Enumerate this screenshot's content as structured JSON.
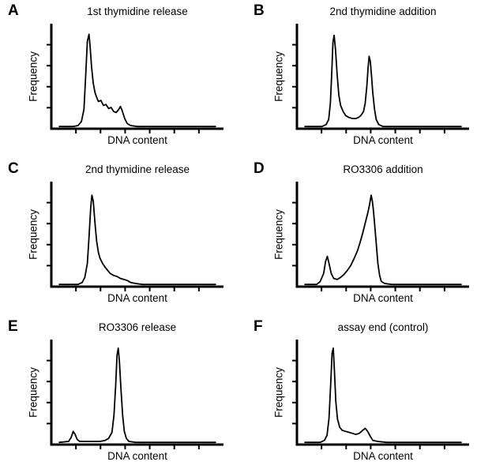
{
  "figure": {
    "kind": "flow-cytometry cell-cycle histogram figure",
    "grid": "2 columns x 3 rows",
    "background": "#ffffff",
    "line_color": "#000000"
  },
  "chart_data": [
    {
      "panel": "A",
      "type": "line",
      "title": "1st thymidine release",
      "xlabel": "DNA content",
      "ylabel": "Frequency",
      "features": "single tall narrow 2N (G1) peak with noisy right tail and small 4N bump",
      "layout": {
        "frame": "L-shaped axes",
        "x_ticks": 6,
        "y_ticks": 4,
        "tick_labels": false,
        "x_range": [
          0,
          1
        ],
        "y_range": [
          0,
          1
        ]
      },
      "points": [
        [
          0.04,
          0.01
        ],
        [
          0.12,
          0.01
        ],
        [
          0.15,
          0.02
        ],
        [
          0.17,
          0.06
        ],
        [
          0.185,
          0.18
        ],
        [
          0.195,
          0.5
        ],
        [
          0.205,
          0.86
        ],
        [
          0.215,
          0.93
        ],
        [
          0.222,
          0.8
        ],
        [
          0.23,
          0.6
        ],
        [
          0.24,
          0.44
        ],
        [
          0.25,
          0.35
        ],
        [
          0.26,
          0.3
        ],
        [
          0.27,
          0.26
        ],
        [
          0.285,
          0.27
        ],
        [
          0.3,
          0.22
        ],
        [
          0.315,
          0.23
        ],
        [
          0.33,
          0.19
        ],
        [
          0.345,
          0.2
        ],
        [
          0.36,
          0.16
        ],
        [
          0.375,
          0.15
        ],
        [
          0.39,
          0.18
        ],
        [
          0.4,
          0.21
        ],
        [
          0.41,
          0.17
        ],
        [
          0.425,
          0.09
        ],
        [
          0.44,
          0.04
        ],
        [
          0.46,
          0.02
        ],
        [
          0.5,
          0.01
        ],
        [
          0.96,
          0.01
        ]
      ]
    },
    {
      "panel": "B",
      "type": "line",
      "title": "2nd thymidine addition",
      "xlabel": "DNA content",
      "ylabel": "Frequency",
      "features": "two peaks: tall narrow 2N (G1) peak and slightly shorter 4N (G2/M) peak with shallow valley between",
      "layout": {
        "frame": "L-shaped axes",
        "x_ticks": 6,
        "y_ticks": 4,
        "tick_labels": false,
        "x_range": [
          0,
          1
        ],
        "y_range": [
          0,
          1
        ]
      },
      "points": [
        [
          0.04,
          0.01
        ],
        [
          0.14,
          0.01
        ],
        [
          0.165,
          0.03
        ],
        [
          0.18,
          0.08
        ],
        [
          0.19,
          0.25
        ],
        [
          0.198,
          0.55
        ],
        [
          0.205,
          0.85
        ],
        [
          0.212,
          0.92
        ],
        [
          0.22,
          0.78
        ],
        [
          0.23,
          0.52
        ],
        [
          0.24,
          0.32
        ],
        [
          0.25,
          0.22
        ],
        [
          0.265,
          0.16
        ],
        [
          0.28,
          0.12
        ],
        [
          0.3,
          0.1
        ],
        [
          0.32,
          0.09
        ],
        [
          0.34,
          0.09
        ],
        [
          0.355,
          0.1
        ],
        [
          0.37,
          0.12
        ],
        [
          0.385,
          0.16
        ],
        [
          0.395,
          0.24
        ],
        [
          0.405,
          0.42
        ],
        [
          0.412,
          0.6
        ],
        [
          0.418,
          0.71
        ],
        [
          0.425,
          0.66
        ],
        [
          0.432,
          0.52
        ],
        [
          0.44,
          0.34
        ],
        [
          0.45,
          0.18
        ],
        [
          0.46,
          0.08
        ],
        [
          0.475,
          0.03
        ],
        [
          0.5,
          0.01
        ],
        [
          0.96,
          0.01
        ]
      ]
    },
    {
      "panel": "C",
      "type": "line",
      "title": "2nd thymidine release",
      "xlabel": "DNA content",
      "ylabel": "Frequency",
      "features": "single dominant 2N (G1) peak with smooth decaying right tail",
      "layout": {
        "frame": "L-shaped axes",
        "x_ticks": 6,
        "y_ticks": 4,
        "tick_labels": false,
        "x_range": [
          0,
          1
        ],
        "y_range": [
          0,
          1
        ]
      },
      "points": [
        [
          0.04,
          0.01
        ],
        [
          0.15,
          0.01
        ],
        [
          0.175,
          0.03
        ],
        [
          0.19,
          0.08
        ],
        [
          0.205,
          0.22
        ],
        [
          0.215,
          0.48
        ],
        [
          0.225,
          0.78
        ],
        [
          0.232,
          0.9
        ],
        [
          0.24,
          0.84
        ],
        [
          0.25,
          0.62
        ],
        [
          0.26,
          0.44
        ],
        [
          0.27,
          0.33
        ],
        [
          0.28,
          0.27
        ],
        [
          0.295,
          0.22
        ],
        [
          0.31,
          0.18
        ],
        [
          0.325,
          0.15
        ],
        [
          0.34,
          0.12
        ],
        [
          0.36,
          0.1
        ],
        [
          0.38,
          0.09
        ],
        [
          0.4,
          0.07
        ],
        [
          0.42,
          0.06
        ],
        [
          0.44,
          0.05
        ],
        [
          0.46,
          0.03
        ],
        [
          0.49,
          0.02
        ],
        [
          0.53,
          0.01
        ],
        [
          0.96,
          0.01
        ]
      ]
    },
    {
      "panel": "D",
      "type": "line",
      "title": "RO3306 addition",
      "xlabel": "DNA content",
      "ylabel": "Frequency",
      "features": "small residual 2N peak plus broad rising shoulder into dominant sharp 4N (G2/M) peak",
      "layout": {
        "frame": "L-shaped axes",
        "x_ticks": 6,
        "y_ticks": 4,
        "tick_labels": false,
        "x_range": [
          0,
          1
        ],
        "y_range": [
          0,
          1
        ]
      },
      "points": [
        [
          0.04,
          0.01
        ],
        [
          0.11,
          0.01
        ],
        [
          0.13,
          0.04
        ],
        [
          0.15,
          0.12
        ],
        [
          0.162,
          0.24
        ],
        [
          0.172,
          0.29
        ],
        [
          0.182,
          0.22
        ],
        [
          0.195,
          0.12
        ],
        [
          0.21,
          0.07
        ],
        [
          0.23,
          0.06
        ],
        [
          0.25,
          0.08
        ],
        [
          0.27,
          0.11
        ],
        [
          0.29,
          0.15
        ],
        [
          0.31,
          0.2
        ],
        [
          0.33,
          0.27
        ],
        [
          0.35,
          0.35
        ],
        [
          0.365,
          0.43
        ],
        [
          0.38,
          0.52
        ],
        [
          0.395,
          0.62
        ],
        [
          0.41,
          0.72
        ],
        [
          0.42,
          0.8
        ],
        [
          0.43,
          0.9
        ],
        [
          0.437,
          0.84
        ],
        [
          0.443,
          0.76
        ],
        [
          0.45,
          0.62
        ],
        [
          0.46,
          0.42
        ],
        [
          0.47,
          0.22
        ],
        [
          0.48,
          0.1
        ],
        [
          0.49,
          0.04
        ],
        [
          0.51,
          0.02
        ],
        [
          0.55,
          0.01
        ],
        [
          0.96,
          0.01
        ]
      ]
    },
    {
      "panel": "E",
      "type": "line",
      "title": "RO3306 release",
      "xlabel": "DNA content",
      "ylabel": "Frequency",
      "features": "tiny 2N bump and dominant tall narrow peak at higher DNA content (mitotic/G2 population)",
      "layout": {
        "frame": "L-shaped axes",
        "x_ticks": 6,
        "y_ticks": 4,
        "tick_labels": false,
        "x_range": [
          0,
          1
        ],
        "y_range": [
          0,
          1
        ]
      },
      "points": [
        [
          0.04,
          0.01
        ],
        [
          0.095,
          0.02
        ],
        [
          0.11,
          0.06
        ],
        [
          0.122,
          0.12
        ],
        [
          0.133,
          0.09
        ],
        [
          0.145,
          0.04
        ],
        [
          0.16,
          0.02
        ],
        [
          0.2,
          0.02
        ],
        [
          0.24,
          0.02
        ],
        [
          0.28,
          0.02
        ],
        [
          0.31,
          0.03
        ],
        [
          0.33,
          0.05
        ],
        [
          0.35,
          0.11
        ],
        [
          0.362,
          0.28
        ],
        [
          0.372,
          0.58
        ],
        [
          0.38,
          0.88
        ],
        [
          0.387,
          0.95
        ],
        [
          0.394,
          0.82
        ],
        [
          0.403,
          0.55
        ],
        [
          0.413,
          0.28
        ],
        [
          0.423,
          0.12
        ],
        [
          0.435,
          0.05
        ],
        [
          0.45,
          0.02
        ],
        [
          0.49,
          0.01
        ],
        [
          0.96,
          0.01
        ]
      ]
    },
    {
      "panel": "F",
      "type": "line",
      "title": "assay end (control)",
      "xlabel": "DNA content",
      "ylabel": "Frequency",
      "features": "tall narrow 2N (G1) peak, low plateau tail and small 4N bump",
      "layout": {
        "frame": "L-shaped axes",
        "x_ticks": 6,
        "y_ticks": 4,
        "tick_labels": false,
        "x_range": [
          0,
          1
        ],
        "y_range": [
          0,
          1
        ]
      },
      "points": [
        [
          0.04,
          0.01
        ],
        [
          0.13,
          0.01
        ],
        [
          0.155,
          0.03
        ],
        [
          0.17,
          0.08
        ],
        [
          0.182,
          0.25
        ],
        [
          0.192,
          0.6
        ],
        [
          0.2,
          0.9
        ],
        [
          0.207,
          0.95
        ],
        [
          0.214,
          0.72
        ],
        [
          0.222,
          0.42
        ],
        [
          0.232,
          0.24
        ],
        [
          0.245,
          0.16
        ],
        [
          0.26,
          0.13
        ],
        [
          0.28,
          0.12
        ],
        [
          0.3,
          0.11
        ],
        [
          0.32,
          0.1
        ],
        [
          0.34,
          0.09
        ],
        [
          0.36,
          0.1
        ],
        [
          0.38,
          0.13
        ],
        [
          0.395,
          0.15
        ],
        [
          0.41,
          0.12
        ],
        [
          0.425,
          0.07
        ],
        [
          0.44,
          0.03
        ],
        [
          0.47,
          0.02
        ],
        [
          0.52,
          0.01
        ],
        [
          0.96,
          0.01
        ]
      ]
    }
  ]
}
